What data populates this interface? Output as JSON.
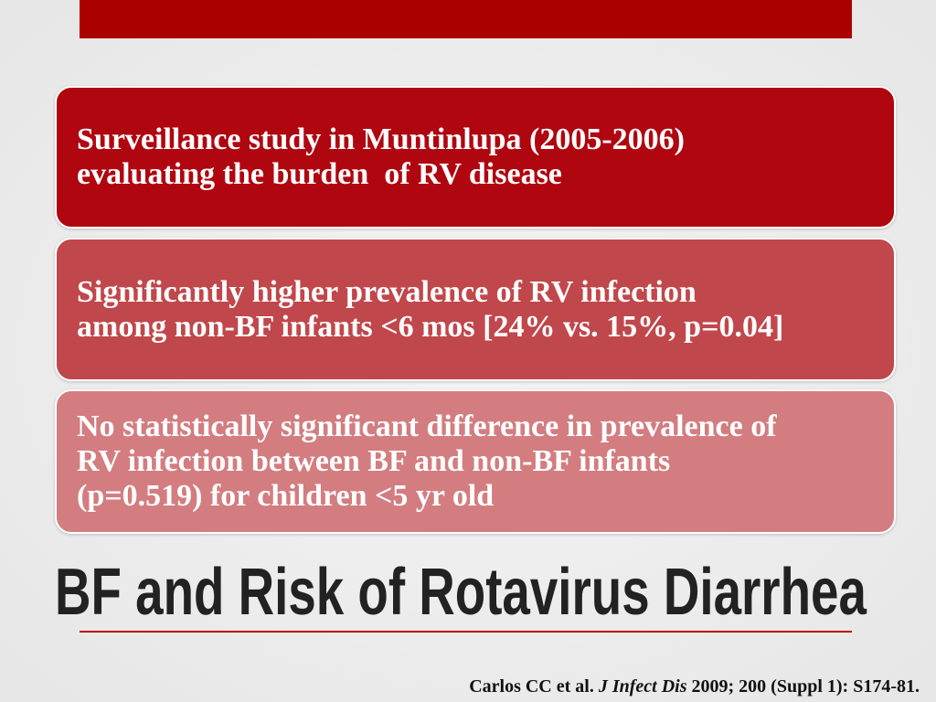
{
  "boxes": [
    {
      "lines": [
        "Surveillance study in Muntinlupa (2005-2006)",
        "evaluating the burden  of RV disease"
      ]
    },
    {
      "lines": [
        "Significantly higher prevalence of RV infection",
        "among non-BF infants <6 mos [24% vs. 15%, p=0.04]"
      ]
    },
    {
      "lines": [
        "No statistically significant difference in prevalence of",
        "RV infection between BF and non-BF infants",
        "(p=0.519) for children <5 yr old"
      ]
    }
  ],
  "title": "BF and Risk of Rotavirus Diarrhea",
  "citation": {
    "authors": "Carlos CC et al.",
    "journal": "J Infect Dis",
    "details": "2009; 200 (Suppl 1): S174-81."
  }
}
